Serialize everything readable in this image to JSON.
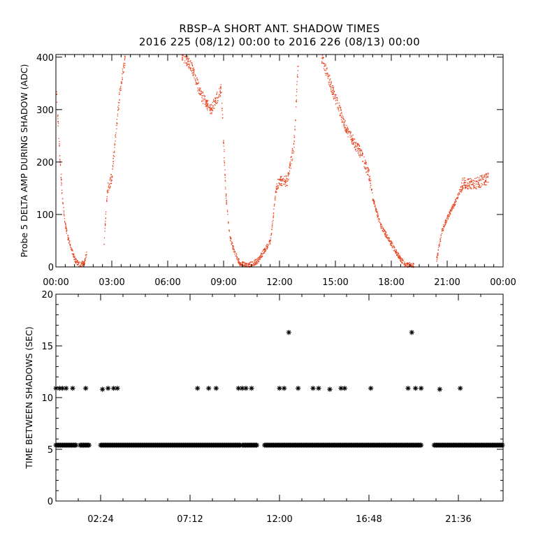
{
  "title": {
    "line1": "RBSP–A SHORT ANT. SHADOW TIMES",
    "line2": "2016 225 (08/12) 00:00 to 2016 226 (08/13) 00:00"
  },
  "chart_data": [
    {
      "type": "scatter",
      "ylabel": "Probe 5 DELTA AMP DURING SHADOW (ADC)",
      "xlim_hours": [
        0,
        24
      ],
      "ylim": [
        0,
        405
      ],
      "x_ticks": [
        "00:00",
        "03:00",
        "06:00",
        "09:00",
        "12:00",
        "15:00",
        "18:00",
        "21:00",
        "00:00"
      ],
      "y_ticks": [
        0,
        100,
        200,
        300,
        400
      ],
      "marker_color": "#e8431e",
      "series": [
        {
          "name": "",
          "trend_points_hours": [
            [
              0.0,
              340
            ],
            [
              0.12,
              260
            ],
            [
              0.22,
              195
            ],
            [
              0.33,
              130
            ],
            [
              0.45,
              88
            ],
            [
              0.6,
              60
            ],
            [
              0.8,
              35
            ],
            [
              1.0,
              15
            ],
            [
              1.2,
              5
            ],
            [
              1.5,
              8
            ],
            [
              1.65,
              32
            ],
            [
              2.55,
              40
            ],
            [
              2.75,
              150
            ],
            [
              3.0,
              175
            ],
            [
              3.2,
              260
            ],
            [
              3.4,
              330
            ],
            [
              3.7,
              400
            ],
            [
              6.75,
              405
            ],
            [
              7.25,
              385
            ],
            [
              7.75,
              330
            ],
            [
              8.3,
              300
            ],
            [
              8.85,
              340
            ],
            [
              9.1,
              140
            ],
            [
              9.3,
              60
            ],
            [
              9.55,
              30
            ],
            [
              9.85,
              8
            ],
            [
              10.3,
              3
            ],
            [
              10.8,
              12
            ],
            [
              11.5,
              50
            ],
            [
              11.8,
              150
            ],
            [
              12.0,
              165
            ],
            [
              12.4,
              165
            ],
            [
              12.75,
              230
            ],
            [
              13.0,
              400
            ],
            [
              14.2,
              405
            ],
            [
              14.9,
              330
            ],
            [
              15.6,
              260
            ],
            [
              16.3,
              220
            ],
            [
              16.8,
              175
            ],
            [
              17.0,
              130
            ],
            [
              17.4,
              80
            ],
            [
              17.9,
              50
            ],
            [
              18.3,
              25
            ],
            [
              18.7,
              5
            ],
            [
              19.2,
              3
            ],
            [
              20.4,
              12
            ],
            [
              20.7,
              70
            ],
            [
              21.0,
              95
            ],
            [
              21.5,
              130
            ],
            [
              21.8,
              160
            ],
            [
              22.5,
              160
            ],
            [
              23.2,
              170
            ],
            [
              24.0,
              185
            ]
          ]
        }
      ]
    },
    {
      "type": "scatter",
      "ylabel": "TIME BETWEEN SHADOWS (SEC)",
      "xlim_hours": [
        0,
        24
      ],
      "ylim": [
        0,
        20
      ],
      "x_ticks": [
        "02:24",
        "07:12",
        "12:00",
        "16:48",
        "21:36"
      ],
      "y_ticks": [
        0,
        5,
        10,
        15,
        20
      ],
      "marker": "*",
      "marker_color": "#000000",
      "series": [
        {
          "name": "",
          "baseline_value": 5.4,
          "baseline_hours": [
            [
              0.0,
              1.1
            ],
            [
              1.3,
              1.8
            ],
            [
              2.4,
              9.9
            ],
            [
              10.0,
              10.8
            ],
            [
              11.2,
              19.6
            ],
            [
              20.3,
              24.0
            ]
          ],
          "points": [
            [
              0.0,
              10.9
            ],
            [
              0.2,
              10.9
            ],
            [
              0.35,
              10.9
            ],
            [
              0.55,
              10.9
            ],
            [
              0.9,
              10.9
            ],
            [
              1.6,
              10.9
            ],
            [
              2.5,
              10.8
            ],
            [
              2.8,
              10.9
            ],
            [
              3.1,
              10.9
            ],
            [
              3.3,
              10.9
            ],
            [
              7.6,
              10.9
            ],
            [
              8.2,
              10.9
            ],
            [
              8.6,
              10.9
            ],
            [
              9.8,
              10.9
            ],
            [
              10.0,
              10.9
            ],
            [
              10.2,
              10.9
            ],
            [
              10.5,
              10.9
            ],
            [
              12.0,
              10.9
            ],
            [
              12.25,
              10.9
            ],
            [
              12.5,
              16.3
            ],
            [
              13.0,
              10.9
            ],
            [
              13.8,
              10.9
            ],
            [
              14.1,
              10.9
            ],
            [
              14.7,
              10.8
            ],
            [
              15.3,
              10.9
            ],
            [
              15.5,
              10.9
            ],
            [
              16.9,
              10.9
            ],
            [
              18.9,
              10.9
            ],
            [
              19.1,
              16.3
            ],
            [
              19.3,
              10.9
            ],
            [
              19.6,
              10.9
            ],
            [
              20.6,
              10.8
            ],
            [
              21.7,
              10.9
            ]
          ]
        }
      ]
    }
  ]
}
